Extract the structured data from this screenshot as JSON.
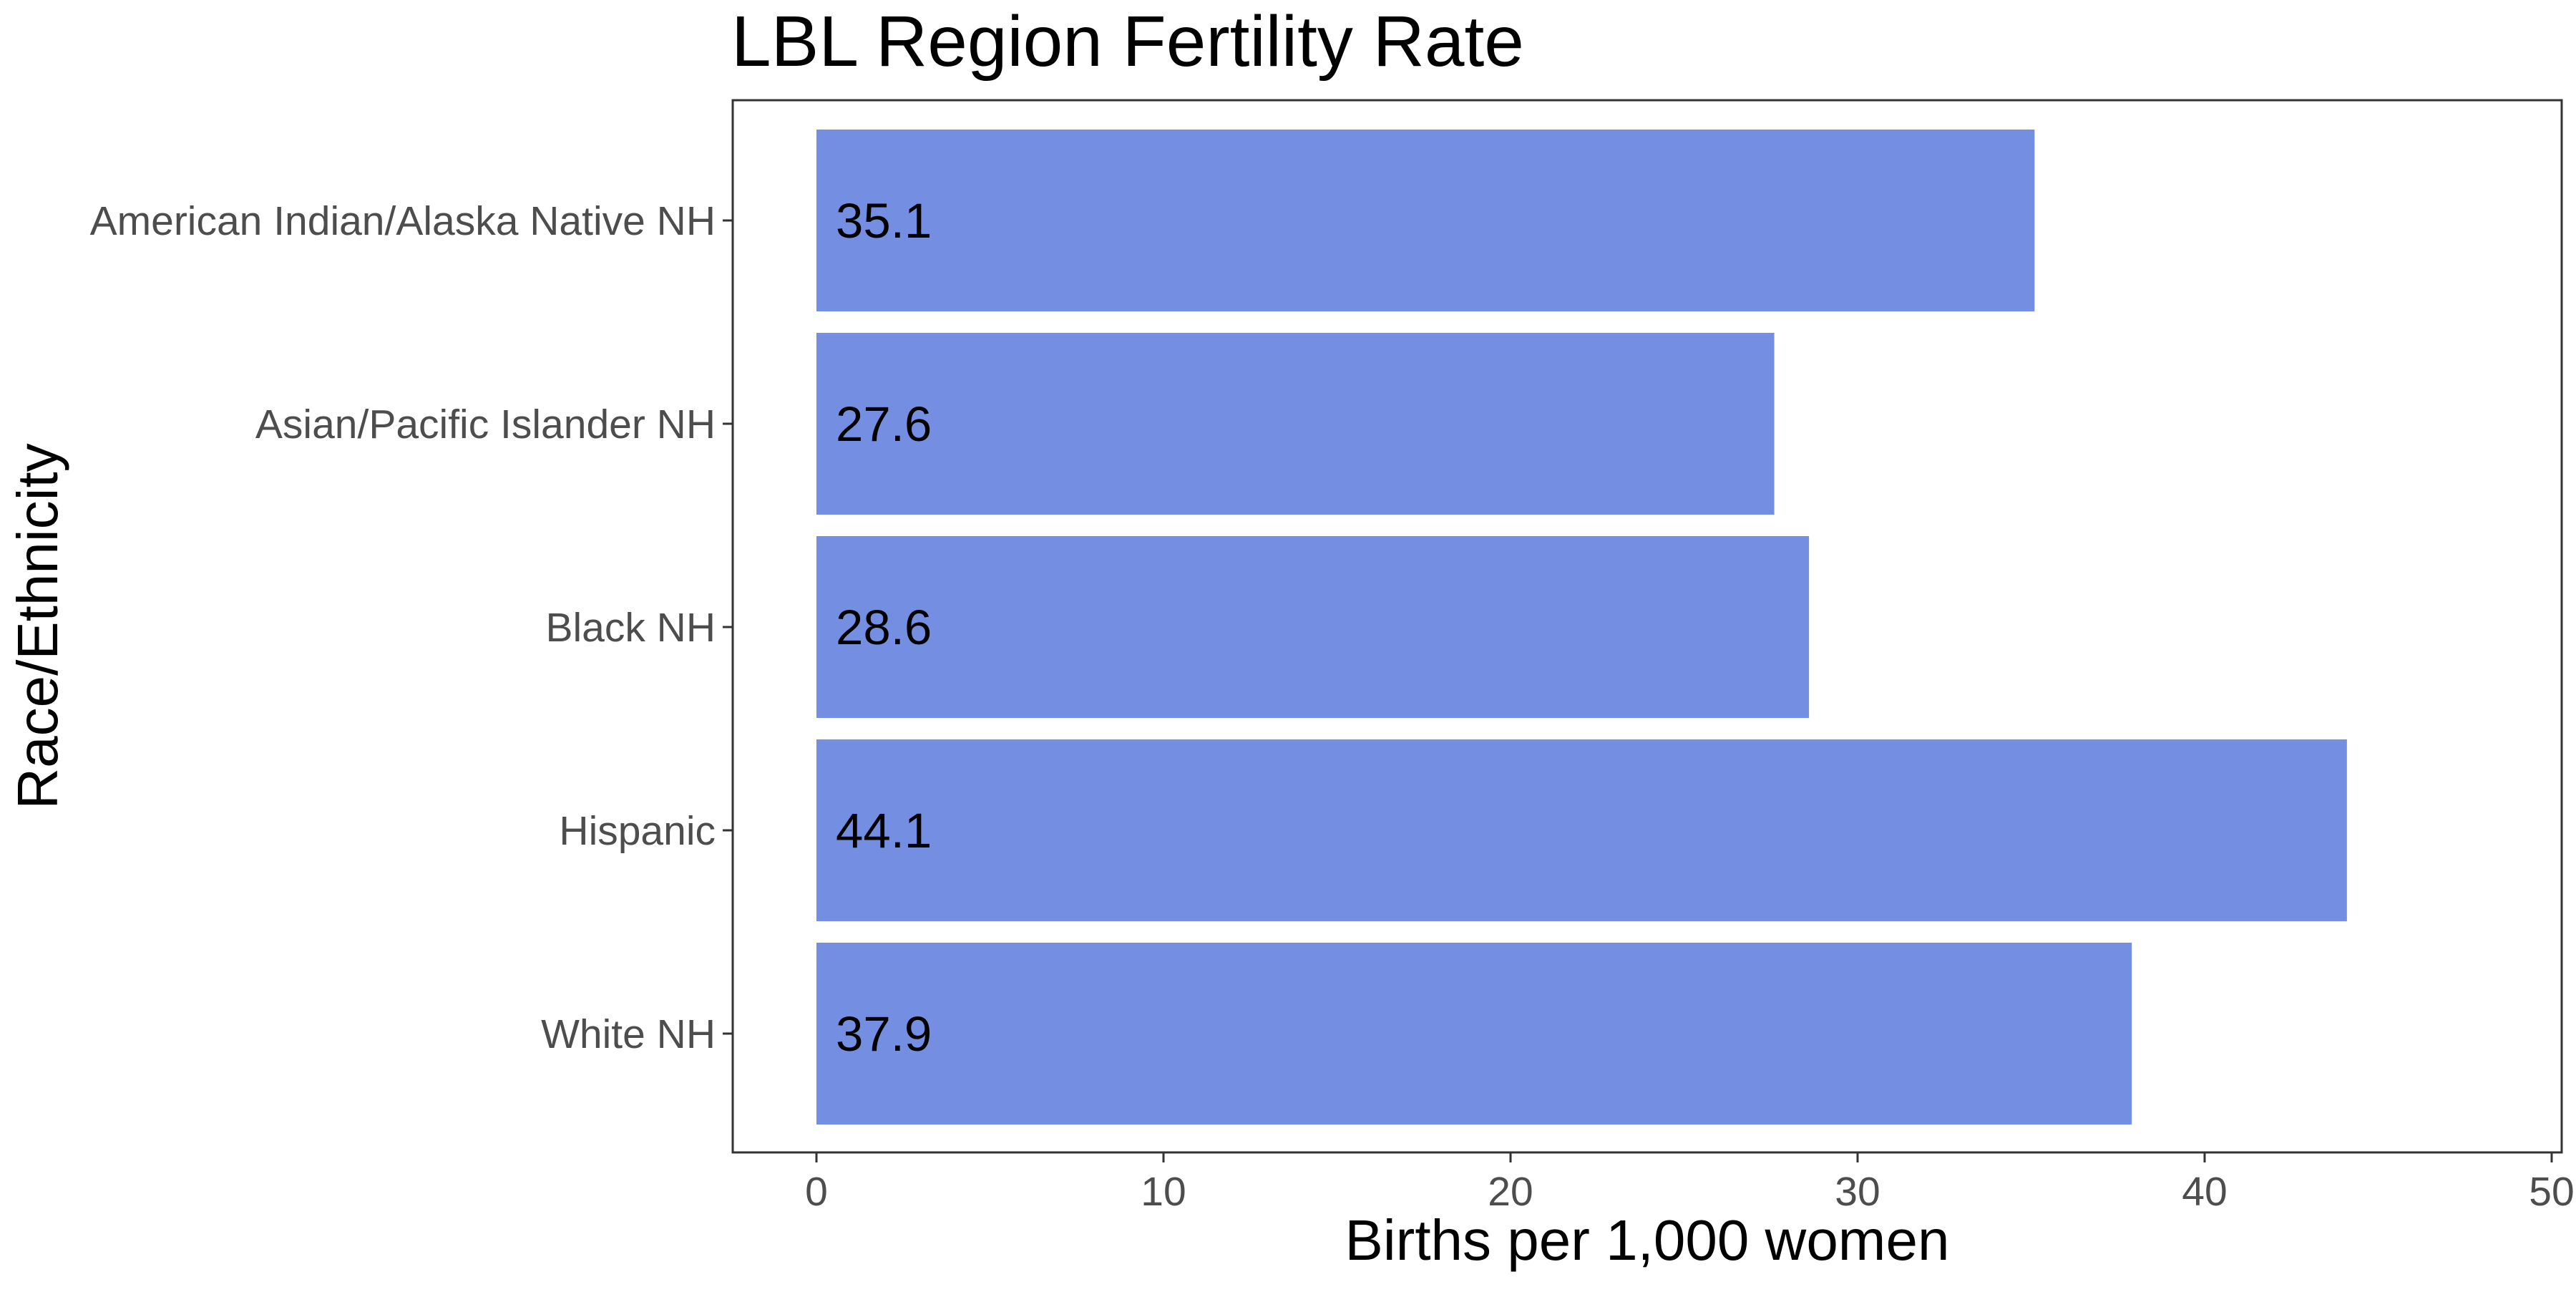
{
  "chart_data": {
    "type": "bar",
    "orientation": "horizontal",
    "title": "LBL Region Fertility Rate",
    "xlabel": "Births per 1,000 women",
    "ylabel": "Race/Ethnicity",
    "categories": [
      "American Indian/Alaska Native NH",
      "Asian/Pacific Islander NH",
      "Black NH",
      "Hispanic",
      "White NH"
    ],
    "values": [
      35.1,
      27.6,
      28.6,
      44.1,
      37.9
    ],
    "data_labels": [
      "35.1",
      "27.6",
      "28.6",
      "44.1",
      "37.9"
    ],
    "xlim": [
      0,
      50
    ],
    "x_ticks": [
      0,
      10,
      20,
      30,
      40,
      50
    ],
    "grid": false,
    "legend": "none",
    "colors": {
      "bar": "#748fe2",
      "panel_border": "#333333",
      "tick_text": "#4d4d4d",
      "text": "#000000",
      "background": "#ffffff"
    }
  }
}
